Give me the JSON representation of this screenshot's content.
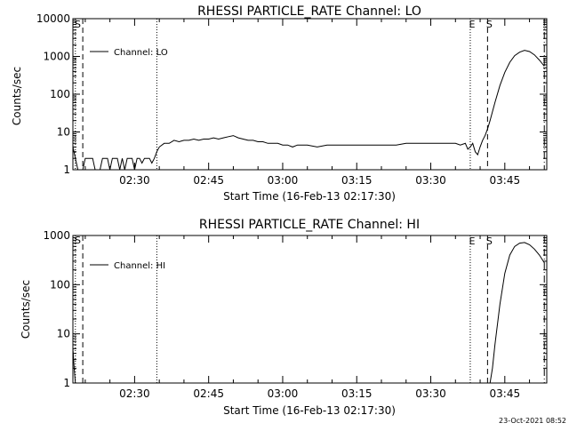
{
  "chart_data": [
    {
      "type": "line",
      "title": "RHESSI PARTICLE_RATE Channel: LO",
      "xlabel": "Start Time (16-Feb-13 02:17:30)",
      "ylabel": "Counts/sec",
      "yscale": "log",
      "ylim": [
        1,
        10000
      ],
      "xlim": [
        "02:17:30",
        "03:53:30"
      ],
      "x_ticks": [
        "02:30",
        "02:45",
        "03:00",
        "03:15",
        "03:30",
        "03:45"
      ],
      "y_ticks": [
        "1",
        "10",
        "100",
        "1000",
        "10000"
      ],
      "legend": "top-left",
      "grid": false,
      "series": [
        {
          "name": "Channel: LO",
          "color": "#000000",
          "points": [
            [
              "02:17:30",
              4
            ],
            [
              "02:18:00",
              2
            ],
            [
              "02:18:30",
              1
            ],
            [
              "02:19:30",
              1
            ],
            [
              "02:20:00",
              2
            ],
            [
              "02:21:30",
              2
            ],
            [
              "02:22:00",
              1
            ],
            [
              "02:23:00",
              1
            ],
            [
              "02:23:30",
              2
            ],
            [
              "02:24:30",
              2
            ],
            [
              "02:25:00",
              1
            ],
            [
              "02:25:30",
              2
            ],
            [
              "02:26:30",
              2
            ],
            [
              "02:27:00",
              1
            ],
            [
              "02:27:30",
              2
            ],
            [
              "02:28:00",
              1
            ],
            [
              "02:28:30",
              2
            ],
            [
              "02:29:30",
              2
            ],
            [
              "02:30:00",
              1
            ],
            [
              "02:30:30",
              2
            ],
            [
              "02:31:00",
              2
            ],
            [
              "02:31:30",
              1.5
            ],
            [
              "02:32:00",
              2
            ],
            [
              "02:33:00",
              2
            ],
            [
              "02:33:30",
              1.5
            ],
            [
              "02:34:00",
              2
            ],
            [
              "02:34:30",
              3
            ],
            [
              "02:35:00",
              4
            ],
            [
              "02:36:00",
              5
            ],
            [
              "02:37:00",
              5
            ],
            [
              "02:38:00",
              6
            ],
            [
              "02:39:00",
              5.5
            ],
            [
              "02:40:00",
              6
            ],
            [
              "02:41:00",
              6
            ],
            [
              "02:42:00",
              6.5
            ],
            [
              "02:43:00",
              6
            ],
            [
              "02:44:00",
              6.5
            ],
            [
              "02:45:00",
              6.5
            ],
            [
              "02:46:00",
              7
            ],
            [
              "02:47:00",
              6.5
            ],
            [
              "02:48:00",
              7
            ],
            [
              "02:49:00",
              7.5
            ],
            [
              "02:50:00",
              8
            ],
            [
              "02:51:00",
              7
            ],
            [
              "02:52:00",
              6.5
            ],
            [
              "02:53:00",
              6
            ],
            [
              "02:54:00",
              6
            ],
            [
              "02:55:00",
              5.5
            ],
            [
              "02:56:00",
              5.5
            ],
            [
              "02:57:00",
              5
            ],
            [
              "02:58:00",
              5
            ],
            [
              "02:59:00",
              5
            ],
            [
              "03:00:00",
              4.5
            ],
            [
              "03:01:00",
              4.5
            ],
            [
              "03:02:00",
              4
            ],
            [
              "03:03:00",
              4.5
            ],
            [
              "03:05:00",
              4.5
            ],
            [
              "03:07:00",
              4
            ],
            [
              "03:09:00",
              4.5
            ],
            [
              "03:11:00",
              4.5
            ],
            [
              "03:13:00",
              4.5
            ],
            [
              "03:15:00",
              4.5
            ],
            [
              "03:17:00",
              4.5
            ],
            [
              "03:19:00",
              4.5
            ],
            [
              "03:21:00",
              4.5
            ],
            [
              "03:23:00",
              4.5
            ],
            [
              "03:25:00",
              5
            ],
            [
              "03:27:00",
              5
            ],
            [
              "03:29:00",
              5
            ],
            [
              "03:31:00",
              5
            ],
            [
              "03:33:00",
              5
            ],
            [
              "03:35:00",
              5
            ],
            [
              "03:36:00",
              4.5
            ],
            [
              "03:37:00",
              5
            ],
            [
              "03:37:30",
              3.5
            ],
            [
              "03:38:00",
              4
            ],
            [
              "03:38:30",
              5
            ],
            [
              "03:39:00",
              3
            ],
            [
              "03:39:30",
              2.5
            ],
            [
              "03:40:00",
              4
            ],
            [
              "03:40:30",
              6
            ],
            [
              "03:41:00",
              8
            ],
            [
              "03:41:30",
              12
            ],
            [
              "03:42:00",
              20
            ],
            [
              "03:43:00",
              60
            ],
            [
              "03:44:00",
              170
            ],
            [
              "03:45:00",
              380
            ],
            [
              "03:46:00",
              700
            ],
            [
              "03:47:00",
              1050
            ],
            [
              "03:48:00",
              1300
            ],
            [
              "03:49:00",
              1450
            ],
            [
              "03:50:00",
              1350
            ],
            [
              "03:51:00",
              1100
            ],
            [
              "03:52:00",
              800
            ],
            [
              "03:53:00",
              550
            ]
          ]
        }
      ],
      "markers": [
        {
          "time": "02:18:00",
          "label": "",
          "style": "dotted"
        },
        {
          "time": "02:19:30",
          "label": "",
          "style": "dashed"
        },
        {
          "time": "02:34:30",
          "label": "",
          "style": "dotted"
        },
        {
          "time": "03:38:00",
          "label": "E",
          "style": "dotted"
        },
        {
          "time": "03:41:30",
          "label": "S",
          "style": "dashed"
        },
        {
          "time": "03:53:00",
          "label": "",
          "style": "dashdot"
        }
      ],
      "corner_label": "S"
    },
    {
      "type": "line",
      "title": "RHESSI PARTICLE_RATE Channel: HI",
      "xlabel": "Start Time (16-Feb-13 02:17:30)",
      "ylabel": "Counts/sec",
      "yscale": "log",
      "ylim": [
        1,
        1000
      ],
      "xlim": [
        "02:17:30",
        "03:53:30"
      ],
      "x_ticks": [
        "02:30",
        "02:45",
        "03:00",
        "03:15",
        "03:30",
        "03:45"
      ],
      "y_ticks": [
        "1",
        "10",
        "100",
        "1000"
      ],
      "legend": "top-left",
      "grid": false,
      "series": [
        {
          "name": "Channel: HI",
          "color": "#000000",
          "points": [
            [
              "02:17:30",
              5
            ],
            [
              "02:17:45",
              2
            ],
            [
              "02:18:00",
              1
            ],
            [
              "03:42:00",
              1
            ],
            [
              "03:42:30",
              2
            ],
            [
              "03:43:00",
              6
            ],
            [
              "03:44:00",
              40
            ],
            [
              "03:45:00",
              170
            ],
            [
              "03:46:00",
              400
            ],
            [
              "03:47:00",
              600
            ],
            [
              "03:48:00",
              700
            ],
            [
              "03:49:00",
              720
            ],
            [
              "03:50:00",
              650
            ],
            [
              "03:51:00",
              530
            ],
            [
              "03:52:00",
              400
            ],
            [
              "03:53:00",
              280
            ]
          ]
        }
      ],
      "markers": [
        {
          "time": "02:18:00",
          "label": "",
          "style": "dotted"
        },
        {
          "time": "02:19:30",
          "label": "",
          "style": "dashed"
        },
        {
          "time": "02:34:30",
          "label": "",
          "style": "dotted"
        },
        {
          "time": "03:38:00",
          "label": "E",
          "style": "dotted"
        },
        {
          "time": "03:41:30",
          "label": "S",
          "style": "dashed"
        },
        {
          "time": "03:53:00",
          "label": "",
          "style": "dashdot"
        }
      ],
      "corner_label": "S"
    }
  ],
  "footer": {
    "timestamp": "23-Oct-2021 08:52"
  }
}
